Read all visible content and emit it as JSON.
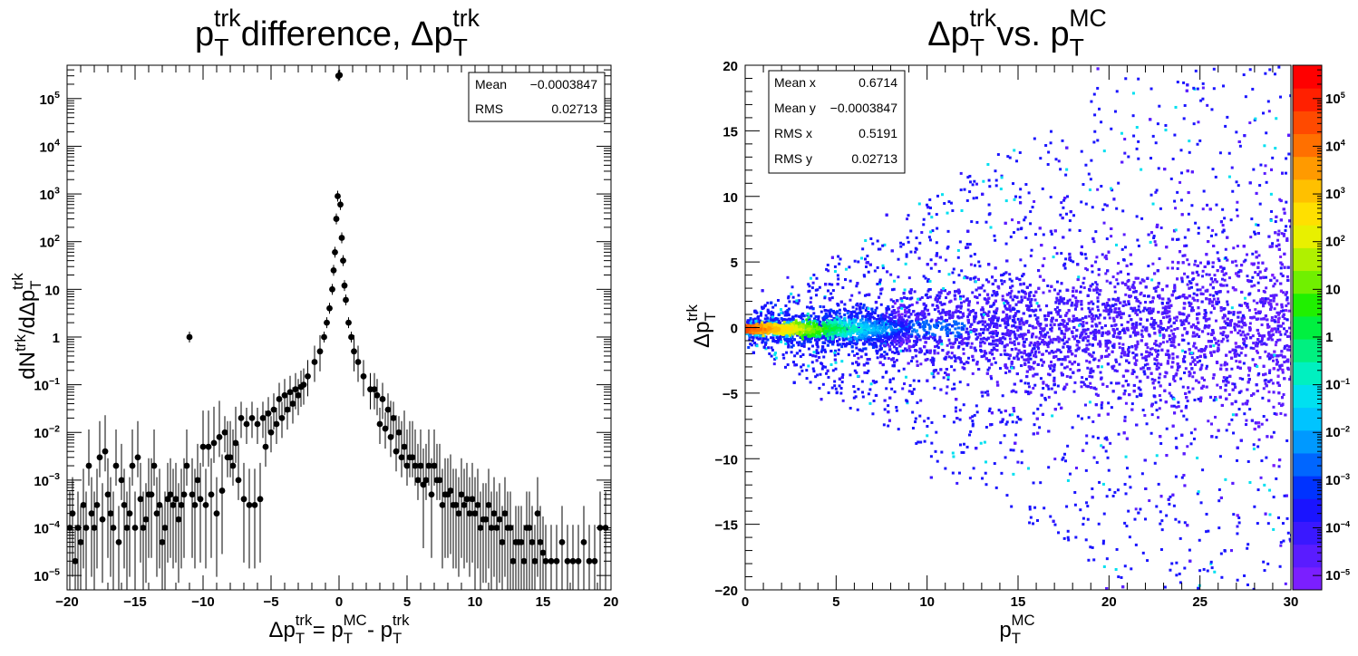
{
  "chart_data": [
    {
      "type": "scatter",
      "title": {
        "base": "p",
        "sub": "T",
        "sup": "trk",
        "text": " difference, ",
        "base2": "Δp",
        "sub2": "T",
        "sup2": "trk"
      },
      "xlabel": {
        "base": "Δp",
        "sub": "T",
        "sup": "trk",
        "eq": " = p",
        "sub_b": "T",
        "sup_b": "MC",
        "minus": " - p",
        "sub_c": "T",
        "sup_c": "trk"
      },
      "ylabel": {
        "a": "dN",
        "sup_a": "trk",
        "b": "/dΔp",
        "sub_b": "T",
        "sup_b": "trk"
      },
      "xlim": [
        -20,
        20
      ],
      "ylim": [
        5e-06,
        500000
      ],
      "yscale": "log",
      "grid": false,
      "xticks": [
        "−20",
        "−15",
        "−10",
        "−5",
        "0",
        "5",
        "10",
        "15",
        "20"
      ],
      "xtick_values": [
        -20,
        -15,
        -10,
        -5,
        0,
        5,
        10,
        15,
        20
      ],
      "yticks": [
        {
          "value": 1e-05,
          "base": "10",
          "exp": "−5"
        },
        {
          "value": 0.0001,
          "base": "10",
          "exp": "−4"
        },
        {
          "value": 0.001,
          "base": "10",
          "exp": "−3"
        },
        {
          "value": 0.01,
          "base": "10",
          "exp": "−2"
        },
        {
          "value": 0.1,
          "base": "10",
          "exp": "−1"
        },
        {
          "value": 1,
          "base": "1",
          "exp": ""
        },
        {
          "value": 10,
          "base": "10",
          "exp": ""
        },
        {
          "value": 100,
          "base": "10",
          "exp": "2"
        },
        {
          "value": 1000,
          "base": "10",
          "exp": "3"
        },
        {
          "value": 10000,
          "base": "10",
          "exp": "4"
        },
        {
          "value": 100000,
          "base": "10",
          "exp": "5"
        }
      ],
      "stats": [
        {
          "label": "Mean",
          "value": "−0.0003847"
        },
        {
          "label": "RMS",
          "value": "0.02713"
        }
      ],
      "peak_points": [
        {
          "x": -0.05,
          "y": 300000
        },
        {
          "x": 0.05,
          "y": 310000
        },
        {
          "x": -0.1,
          "y": 900
        },
        {
          "x": 0.1,
          "y": 600
        },
        {
          "x": -0.2,
          "y": 300
        },
        {
          "x": 0.2,
          "y": 120
        },
        {
          "x": -0.3,
          "y": 60
        },
        {
          "x": 0.3,
          "y": 40
        },
        {
          "x": -0.4,
          "y": 25
        },
        {
          "x": 0.4,
          "y": 12
        },
        {
          "x": -0.5,
          "y": 10
        },
        {
          "x": 0.5,
          "y": 6
        },
        {
          "x": -0.7,
          "y": 4
        },
        {
          "x": 0.7,
          "y": 2
        },
        {
          "x": -0.9,
          "y": 2
        },
        {
          "x": 0.9,
          "y": 1
        },
        {
          "x": -1.1,
          "y": 1
        },
        {
          "x": 1.1,
          "y": 0.5
        },
        {
          "x": -1.4,
          "y": 0.5
        },
        {
          "x": 1.4,
          "y": 0.3
        },
        {
          "x": -1.8,
          "y": 0.3
        },
        {
          "x": 1.8,
          "y": 0.15
        },
        {
          "x": -2.3,
          "y": 0.15
        },
        {
          "x": 2.3,
          "y": 0.08
        },
        {
          "x": -11,
          "y": 1
        }
      ],
      "series": [
        {
          "x": [
            -19.6,
            -19.2,
            -18.8,
            -18.4,
            -18.0,
            -17.6,
            -17.2,
            -16.8,
            -16.4,
            -16.0,
            -15.6,
            -15.2,
            -14.8,
            -14.4,
            -14.0,
            -13.6,
            -13.2,
            -12.8,
            -12.4,
            -12.0,
            -11.6,
            -11.2,
            -10.8,
            -10.4,
            -10.0,
            -9.6,
            -9.2,
            -8.8,
            -8.4,
            -8.0,
            -7.6,
            -7.2,
            -6.8,
            -6.4,
            -6.0,
            -5.6,
            -5.2,
            -4.8,
            -4.4,
            -4.0,
            -3.6,
            -3.2,
            -2.8,
            -2.6
          ],
          "y": [
            0.0002,
            0.0001,
            0.0003,
            0.002,
            0.0001,
            0.003,
            0.004,
            0.0002,
            0.002,
            0.001,
            0.0001,
            0.002,
            0.003,
            0.0001,
            0.0005,
            0.002,
            0.0003,
            0.0001,
            0.0005,
            0.0004,
            0.0003,
            0.002,
            0.0005,
            0.001,
            0.005,
            0.005,
            0.006,
            0.008,
            0.01,
            0.003,
            0.006,
            0.02,
            0.015,
            0.02,
            0.015,
            0.02,
            0.025,
            0.03,
            0.05,
            0.06,
            0.07,
            0.08,
            0.09,
            0.1
          ]
        },
        {
          "x": [
            -19.8,
            -19.4,
            -19.0,
            -18.6,
            -18.2,
            -17.8,
            -17.4,
            -17.0,
            -16.6,
            -16.2,
            -15.8,
            -15.4,
            -15.0,
            -14.6,
            -14.2,
            -13.8,
            -13.4,
            -13.0,
            -12.6,
            -12.2,
            -11.8,
            -11.4,
            -10.6,
            -10.2,
            -9.8,
            -9.4,
            -9.0,
            -8.6,
            -8.2,
            -7.8,
            -7.4,
            -7.0,
            -6.6,
            -6.2,
            -5.8,
            -5.4,
            -5.0,
            -4.6,
            -4.2,
            -3.8,
            -3.4,
            -3.0
          ],
          "y": [
            0.0001,
            2e-05,
            5e-05,
            0.0001,
            0.0002,
            0.0003,
            0.00015,
            0.0005,
            0.0001,
            5e-05,
            0.0003,
            0.0002,
            0.0001,
            0.0004,
            0.00015,
            0.0005,
            0.0002,
            5e-05,
            0.0004,
            0.0003,
            0.00015,
            0.0005,
            0.0003,
            0.0004,
            0.0003,
            0.0005,
            0.0002,
            0.0006,
            0.003,
            0.002,
            0.001,
            0.0004,
            0.0003,
            0.0003,
            0.0004,
            0.005,
            0.01,
            0.015,
            0.02,
            0.03,
            0.04,
            0.06
          ]
        },
        {
          "x": [
            2.6,
            2.8,
            3.2,
            3.6,
            4.0,
            4.4,
            4.8,
            5.2,
            5.6,
            6.0,
            6.4,
            6.8,
            7.2,
            7.6,
            8.0,
            8.4,
            8.8,
            9.2,
            9.6,
            10.0,
            10.4,
            10.8,
            11.2,
            11.6,
            12.0,
            12.4,
            12.8,
            13.2,
            13.6,
            14.0,
            14.4,
            14.8,
            15.2,
            15.6,
            16.0,
            16.4,
            16.8,
            17.2,
            17.6,
            18.0,
            18.4,
            18.8,
            19.2,
            19.6
          ],
          "y": [
            0.08,
            0.06,
            0.05,
            0.03,
            0.02,
            0.01,
            0.005,
            0.003,
            0.002,
            0.002,
            0.001,
            0.0005,
            0.001,
            0.0003,
            0.0005,
            0.0003,
            0.0002,
            0.0003,
            0.0002,
            0.0002,
            0.0001,
            0.00015,
            0.0001,
            0.0001,
            5e-05,
            0.0001,
            2e-05,
            5e-05,
            2e-05,
            0.0001,
            2e-05,
            5e-05,
            2e-05,
            2e-05,
            2e-05,
            5e-05,
            2e-05,
            2e-05,
            2e-05,
            5e-05,
            2e-05,
            2e-05,
            0.0001,
            0.0001
          ]
        },
        {
          "x": [
            3.0,
            3.4,
            3.8,
            4.2,
            4.6,
            5.0,
            5.4,
            5.8,
            6.2,
            6.6,
            7.0,
            7.4,
            7.8,
            8.2,
            8.6,
            9.0,
            9.4,
            9.8,
            10.2,
            10.6,
            11.0,
            11.4,
            11.8,
            12.2,
            12.6,
            13.0,
            13.4,
            13.8,
            14.2,
            14.6,
            15.0
          ],
          "y": [
            0.015,
            0.012,
            0.008,
            0.004,
            0.003,
            0.002,
            0.003,
            0.001,
            0.0008,
            0.002,
            0.002,
            0.001,
            0.0005,
            0.0006,
            0.0003,
            0.0005,
            0.0004,
            0.0004,
            0.0003,
            0.00015,
            0.0003,
            0.0002,
            0.00015,
            0.0002,
            0.0001,
            5e-05,
            5e-05,
            0.0001,
            5e-05,
            0.0002,
            3e-05
          ]
        }
      ]
    },
    {
      "type": "heatmap",
      "title": {
        "base": "Δp",
        "sub": "T",
        "sup": "trk",
        "mid": " vs. p",
        "sub2": "T",
        "sup2": "MC"
      },
      "xlabel": {
        "base": "p",
        "sub": "T",
        "sup": "MC"
      },
      "ylabel": {
        "base": "Δp",
        "sub": "T",
        "sup": "trk"
      },
      "xlim": [
        0,
        30
      ],
      "ylim": [
        -20,
        20
      ],
      "grid": false,
      "xticks": [
        "0",
        "5",
        "10",
        "15",
        "20",
        "25",
        "30"
      ],
      "xtick_values": [
        0,
        5,
        10,
        15,
        20,
        25,
        30
      ],
      "yticks": [
        "−20",
        "−15",
        "−10",
        "−5",
        "0",
        "5",
        "10",
        "15",
        "20"
      ],
      "ytick_values": [
        -20,
        -15,
        -10,
        -5,
        0,
        5,
        10,
        15,
        20
      ],
      "stats": [
        {
          "label": "Mean x",
          "value": "0.6714"
        },
        {
          "label": "Mean y",
          "value": "−0.0003847"
        },
        {
          "label": "RMS x",
          "value": "0.5191"
        },
        {
          "label": "RMS y",
          "value": "0.02713"
        }
      ],
      "colorscale": {
        "scale": "log",
        "range": [
          5e-06,
          500000
        ],
        "ticks": [
          {
            "value": 1e-05,
            "base": "10",
            "exp": "−5"
          },
          {
            "value": 0.0001,
            "base": "10",
            "exp": "−4"
          },
          {
            "value": 0.001,
            "base": "10",
            "exp": "−3"
          },
          {
            "value": 0.01,
            "base": "10",
            "exp": "−2"
          },
          {
            "value": 0.1,
            "base": "10",
            "exp": "−1"
          },
          {
            "value": 1,
            "base": "1",
            "exp": ""
          },
          {
            "value": 10,
            "base": "10",
            "exp": ""
          },
          {
            "value": 100,
            "base": "10",
            "exp": "2"
          },
          {
            "value": 1000,
            "base": "10",
            "exp": "3"
          },
          {
            "value": 10000,
            "base": "10",
            "exp": "4"
          },
          {
            "value": 100000,
            "base": "10",
            "exp": "5"
          }
        ],
        "colors": [
          "#7b1fff",
          "#5a1cff",
          "#3a18ff",
          "#1a14ff",
          "#0033ff",
          "#0066ff",
          "#0099ff",
          "#00c4ff",
          "#00e0f0",
          "#00f0c0",
          "#00f080",
          "#00f040",
          "#20f000",
          "#70f000",
          "#b0f000",
          "#e8f000",
          "#ffe000",
          "#ffc000",
          "#ff9a00",
          "#ff7000",
          "#ff4a00",
          "#ff2000",
          "#ff0000"
        ]
      }
    }
  ]
}
